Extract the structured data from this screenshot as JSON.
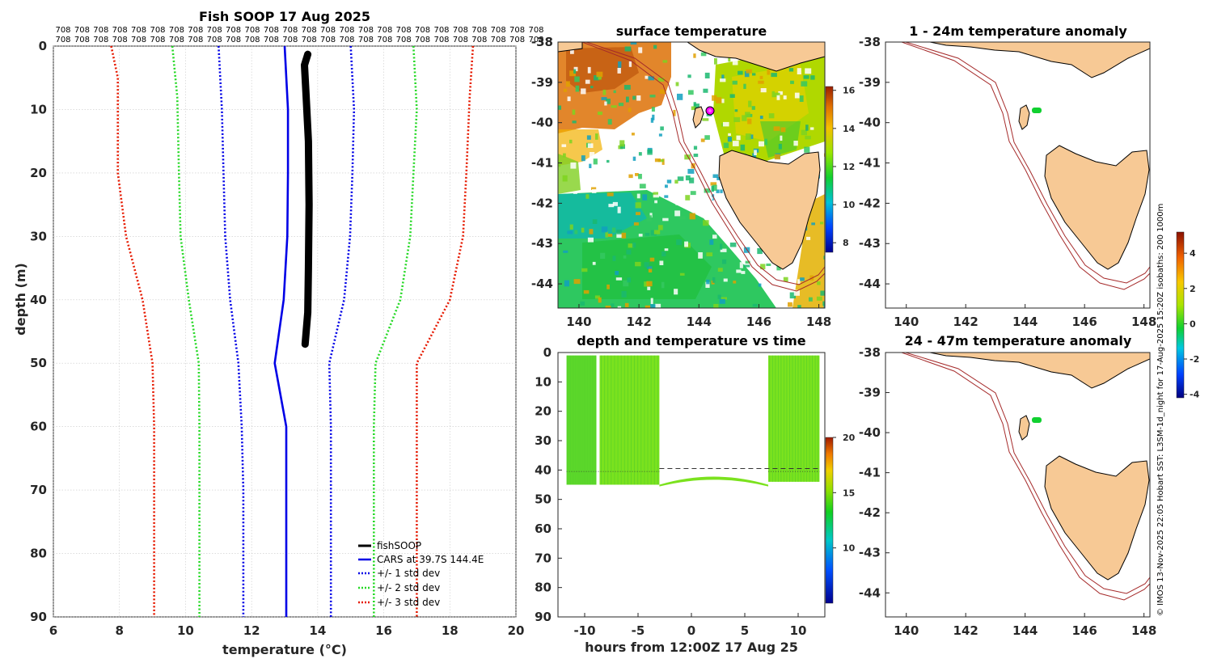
{
  "colors": {
    "fishsoop": "#000000",
    "cars": "#0000e6",
    "std1": "#0000e6",
    "std2": "#26d926",
    "std3": "#e61a00",
    "land": "#f7c995",
    "isobath": "#a52a2a",
    "grid": "#bfbfbf"
  },
  "chart_data": [
    {
      "id": "profile",
      "type": "line",
      "title": "Fish SOOP 17 Aug 2025",
      "xlabel": "temperature (°C)",
      "ylabel": "depth (m)",
      "xlim": [
        6,
        20
      ],
      "ylim": [
        0,
        90
      ],
      "xticks": [
        "6",
        "8",
        "10",
        "12",
        "14",
        "16",
        "18",
        "20"
      ],
      "yticks": [
        "0",
        "10",
        "20",
        "30",
        "40",
        "50",
        "60",
        "70",
        "80",
        "90"
      ],
      "top_label": "708",
      "top_label_count": 26,
      "legend": [
        "fishSOOP",
        "CARS at 39.7S 144.4E",
        "+/- 1 std dev",
        "+/- 2 std dev",
        "+/- 3 std dev"
      ],
      "series": [
        {
          "name": "fishSOOP",
          "color": "#000000",
          "style": "thick",
          "points": [
            [
              13.7,
              1.3
            ],
            [
              13.6,
              3
            ],
            [
              13.65,
              8
            ],
            [
              13.72,
              15
            ],
            [
              13.74,
              25
            ],
            [
              13.72,
              35
            ],
            [
              13.7,
              42
            ],
            [
              13.62,
              47
            ]
          ]
        },
        {
          "name": "CARS at 39.7S 144.4E",
          "color": "#0000e6",
          "style": "solid",
          "points": [
            [
              13.0,
              0
            ],
            [
              13.1,
              10
            ],
            [
              13.1,
              20
            ],
            [
              13.08,
              30
            ],
            [
              12.97,
              40
            ],
            [
              12.7,
              50
            ],
            [
              13.05,
              60
            ],
            [
              13.05,
              70
            ],
            [
              13.05,
              80
            ],
            [
              13.05,
              90
            ]
          ]
        },
        {
          "name": "+1 std",
          "color": "#0000e6",
          "style": "dot",
          "points": [
            [
              15.0,
              0
            ],
            [
              15.1,
              10
            ],
            [
              15.05,
              20
            ],
            [
              14.98,
              30
            ],
            [
              14.8,
              40
            ],
            [
              14.35,
              50
            ],
            [
              14.4,
              60
            ],
            [
              14.4,
              70
            ],
            [
              14.4,
              80
            ],
            [
              14.4,
              90
            ]
          ]
        },
        {
          "name": "-1 std",
          "color": "#0000e6",
          "style": "dot",
          "points": [
            [
              11.0,
              0
            ],
            [
              11.1,
              10
            ],
            [
              11.15,
              20
            ],
            [
              11.2,
              30
            ],
            [
              11.35,
              40
            ],
            [
              11.6,
              50
            ],
            [
              11.7,
              60
            ],
            [
              11.75,
              70
            ],
            [
              11.75,
              80
            ],
            [
              11.75,
              90
            ]
          ]
        },
        {
          "name": "+2 std",
          "color": "#26d926",
          "style": "dot",
          "points": [
            [
              16.9,
              0
            ],
            [
              17.0,
              10
            ],
            [
              16.9,
              20
            ],
            [
              16.8,
              30
            ],
            [
              16.5,
              40
            ],
            [
              15.75,
              50
            ],
            [
              15.7,
              60
            ],
            [
              15.7,
              70
            ],
            [
              15.7,
              80
            ],
            [
              15.7,
              90
            ]
          ]
        },
        {
          "name": "-2 std",
          "color": "#26d926",
          "style": "dot",
          "points": [
            [
              9.6,
              0
            ],
            [
              9.75,
              8
            ],
            [
              9.8,
              20
            ],
            [
              9.85,
              30
            ],
            [
              10.1,
              40
            ],
            [
              10.4,
              50
            ],
            [
              10.42,
              60
            ],
            [
              10.42,
              70
            ],
            [
              10.42,
              80
            ],
            [
              10.42,
              90
            ]
          ]
        },
        {
          "name": "+3 std",
          "color": "#e61a00",
          "style": "dot",
          "points": [
            [
              18.7,
              0
            ],
            [
              18.6,
              8
            ],
            [
              18.5,
              20
            ],
            [
              18.4,
              30
            ],
            [
              18.0,
              40
            ],
            [
              17.0,
              50
            ],
            [
              17.0,
              60
            ],
            [
              17.0,
              70
            ],
            [
              17.0,
              80
            ],
            [
              17.0,
              90
            ]
          ]
        },
        {
          "name": "-3 std",
          "color": "#e61a00",
          "style": "dot",
          "points": [
            [
              7.75,
              0
            ],
            [
              7.95,
              5
            ],
            [
              7.95,
              20
            ],
            [
              8.2,
              30
            ],
            [
              8.7,
              40
            ],
            [
              9.0,
              50
            ],
            [
              9.05,
              60
            ],
            [
              9.05,
              70
            ],
            [
              9.05,
              80
            ],
            [
              9.05,
              90
            ]
          ]
        }
      ]
    },
    {
      "id": "sst",
      "type": "heatmap",
      "title": "surface temperature",
      "xlim": [
        139.3,
        148.2
      ],
      "ylim": [
        -44.6,
        -38
      ],
      "xticks": [
        "140",
        "142",
        "144",
        "146",
        "148"
      ],
      "yticks": [
        "-38",
        "-39",
        "-40",
        "-41",
        "-42",
        "-43",
        "-44"
      ],
      "colorbar": {
        "min": 7.5,
        "max": 16.2,
        "ticks": [
          "8",
          "10",
          "12",
          "14",
          "16"
        ]
      },
      "marker": {
        "lon": 144.4,
        "lat": -39.7
      }
    },
    {
      "id": "depth_time",
      "type": "scatter",
      "title": "depth and temperature vs time",
      "xlabel": "hours from 12:00Z 17 Aug 25",
      "xlim": [
        -12.5,
        12.5
      ],
      "ylim": [
        0,
        90
      ],
      "xticks": [
        "-10",
        "-5",
        "0",
        "5",
        "10"
      ],
      "yticks": [
        "0",
        "10",
        "20",
        "30",
        "40",
        "50",
        "60",
        "70",
        "80",
        "90"
      ],
      "colorbar": {
        "min": 5,
        "max": 20,
        "ticks": [
          "10",
          "15",
          "20"
        ]
      },
      "dive_segments": [
        [
          -11.7,
          -8.9
        ],
        [
          -8.6,
          -3.0
        ],
        [
          7.2,
          12.0
        ]
      ],
      "bottom_depth_left": 45,
      "bottom_depth_right": 44,
      "dashed_line_depth": 39.5
    },
    {
      "id": "anom1",
      "type": "heatmap",
      "title": "1 - 24m temperature anomaly",
      "xlim": [
        139.3,
        148.2
      ],
      "ylim": [
        -44.6,
        -38
      ],
      "xticks": [
        "140",
        "142",
        "144",
        "146",
        "148"
      ],
      "yticks": [
        "-38",
        "-39",
        "-40",
        "-41",
        "-42",
        "-43",
        "-44"
      ]
    },
    {
      "id": "anom2",
      "type": "heatmap",
      "title": "24 - 47m temperature anomaly",
      "xlim": [
        139.3,
        148.2
      ],
      "ylim": [
        -44.6,
        -38
      ],
      "xticks": [
        "140",
        "142",
        "144",
        "146",
        "148"
      ],
      "yticks": [
        "-38",
        "-39",
        "-40",
        "-41",
        "-42",
        "-43",
        "-44"
      ],
      "colorbar": {
        "min": -4.2,
        "max": 5.2,
        "ticks": [
          "4",
          "2",
          "0",
          "-2",
          "-4"
        ]
      }
    }
  ],
  "credit": "© IMOS 13-Nov-2025 22:05 Hobart SST: L3SM-1d_night for 17-Aug-2025 15:20Z isobaths: 200 1000m"
}
